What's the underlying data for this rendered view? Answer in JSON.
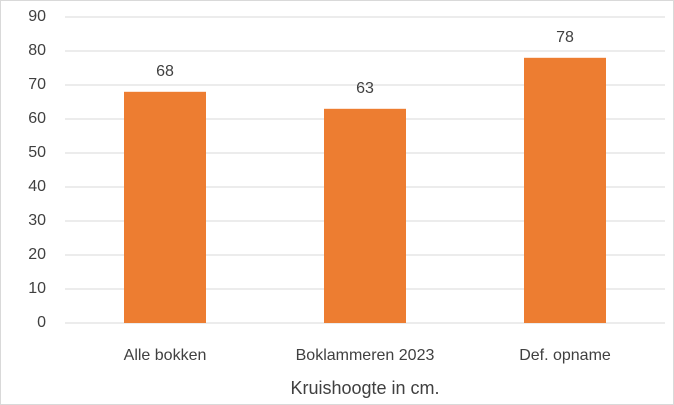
{
  "chart_data": {
    "type": "bar",
    "x_label": "Kruishoogte in cm.",
    "categories": [
      "Alle bokken",
      "Boklammeren 2023",
      "Def. opname"
    ],
    "values": [
      68,
      63,
      78
    ],
    "color": "#ed7d31",
    "ylim": [
      0,
      90
    ],
    "yticks": [
      0,
      10,
      20,
      30,
      40,
      50,
      60,
      70,
      80,
      90
    ],
    "grid": true,
    "data_labels": true
  }
}
